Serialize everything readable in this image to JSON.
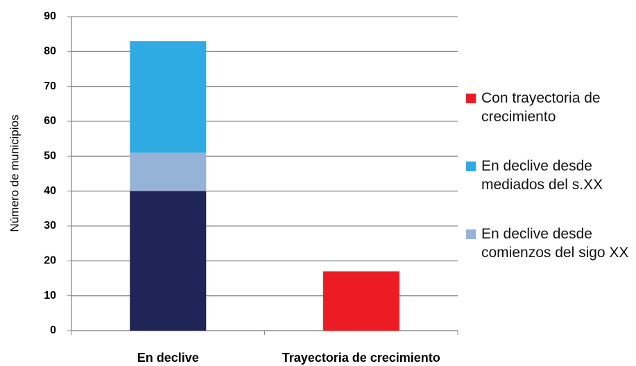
{
  "chart_data": {
    "type": "stacked-bar",
    "y_axis_label": "Número de municipios",
    "categories": [
      "En declive",
      "Trayectoria de crecimiento"
    ],
    "series": [
      {
        "name": null,
        "color": "#1f2557",
        "values": [
          40,
          null
        ]
      },
      {
        "name": "En declive desde comienzos del sigo XX",
        "color": "#95b3d7",
        "values": [
          11,
          null
        ]
      },
      {
        "name": "En declive desde mediados del s.XX",
        "color": "#2fabe3",
        "values": [
          32,
          null
        ]
      },
      {
        "name": "Con trayectoria de crecimiento",
        "color": "#ed1c24",
        "values": [
          null,
          17
        ]
      }
    ],
    "ylim": [
      0,
      90
    ],
    "yticks": [
      0,
      10,
      20,
      30,
      40,
      50,
      60,
      70,
      80,
      90
    ],
    "grid": true
  }
}
